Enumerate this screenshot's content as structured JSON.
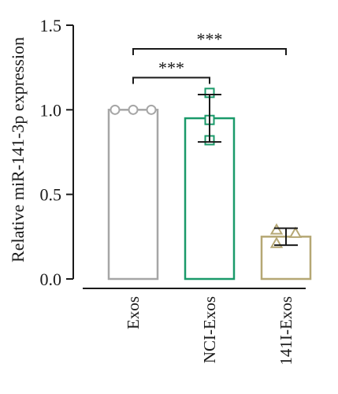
{
  "chart_data": {
    "type": "bar",
    "ylabel": "Relative miR-141-3p expression",
    "xlabel": "",
    "ylim": [
      0,
      1.5
    ],
    "yticks": [
      0.0,
      0.5,
      1.0,
      1.5
    ],
    "ytick_labels": [
      "0.0",
      "0.5",
      "1.0",
      "1.5"
    ],
    "grid": false,
    "bars": [
      {
        "category": "Exos",
        "value": 1.0,
        "err": 0.0,
        "color": "#a6a6a6",
        "marker": "circle",
        "points": [
          1.0,
          1.0,
          1.0
        ]
      },
      {
        "category": "NCI-Exos",
        "value": 0.95,
        "err": 0.14,
        "color": "#1a9a6a",
        "marker": "square",
        "points": [
          1.1,
          0.94,
          0.82
        ]
      },
      {
        "category": "141I-Exos",
        "value": 0.25,
        "err": 0.05,
        "color": "#b5a774",
        "marker": "triangle",
        "points": [
          0.29,
          0.27,
          0.21
        ]
      }
    ],
    "significance": [
      {
        "from": 0,
        "to": 1,
        "label": "***",
        "y": 1.19
      },
      {
        "from": 0,
        "to": 2,
        "label": "***",
        "y": 1.36
      }
    ]
  }
}
